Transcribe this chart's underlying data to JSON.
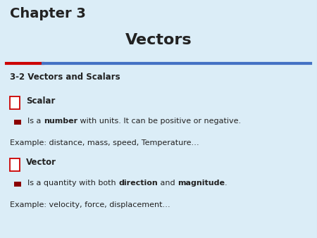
{
  "bg_color_top": "#e8f4fb",
  "bg_color_bottom": "#d0e8f5",
  "title_chapter": "Chapter 3",
  "title_main": "Vectors",
  "section_title": "3-2 Vectors and Scalars",
  "scalar_label": "Scalar",
  "scalar_bullet1_plain1": "Is a ",
  "scalar_bullet1_bold": "number",
  "scalar_bullet1_plain2": " with units. It can be positive or negative.",
  "scalar_bullet2": "Example: distance, mass, speed, Temperature…",
  "vector_label": "Vector",
  "vector_bullet1_plain1": "Is a quantity with both ",
  "vector_bullet1_bold1": "direction",
  "vector_bullet1_plain2": " and ",
  "vector_bullet1_bold2": "magnitude",
  "vector_bullet1_plain3": ".",
  "vector_bullet2": "Example: velocity, force, displacement…",
  "divider_red_color": "#cc0000",
  "divider_blue_color": "#4472c4",
  "checkbox_color": "#cc0000",
  "bullet_color": "#8b0000",
  "text_color": "#222222",
  "font_family": "DejaVu Sans"
}
